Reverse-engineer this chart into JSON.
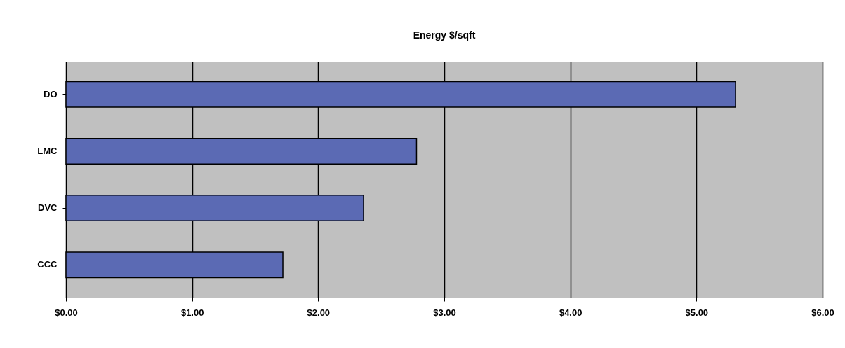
{
  "chart_data": {
    "type": "bar",
    "orientation": "horizontal",
    "title": "Energy $/sqft",
    "categories": [
      "DO",
      "LMC",
      "DVC",
      "CCC"
    ],
    "values": [
      5.31,
      2.78,
      2.36,
      1.72
    ],
    "color": "#5b6ab4",
    "xlim": [
      0,
      6
    ],
    "xticks": [
      {
        "value": 0,
        "label": "$0.00"
      },
      {
        "value": 1,
        "label": "$1.00"
      },
      {
        "value": 2,
        "label": "$2.00"
      },
      {
        "value": 3,
        "label": "$3.00"
      },
      {
        "value": 4,
        "label": "$4.00"
      },
      {
        "value": 5,
        "label": "$5.00"
      },
      {
        "value": 6,
        "label": "$6.00"
      }
    ],
    "grid": "x"
  }
}
